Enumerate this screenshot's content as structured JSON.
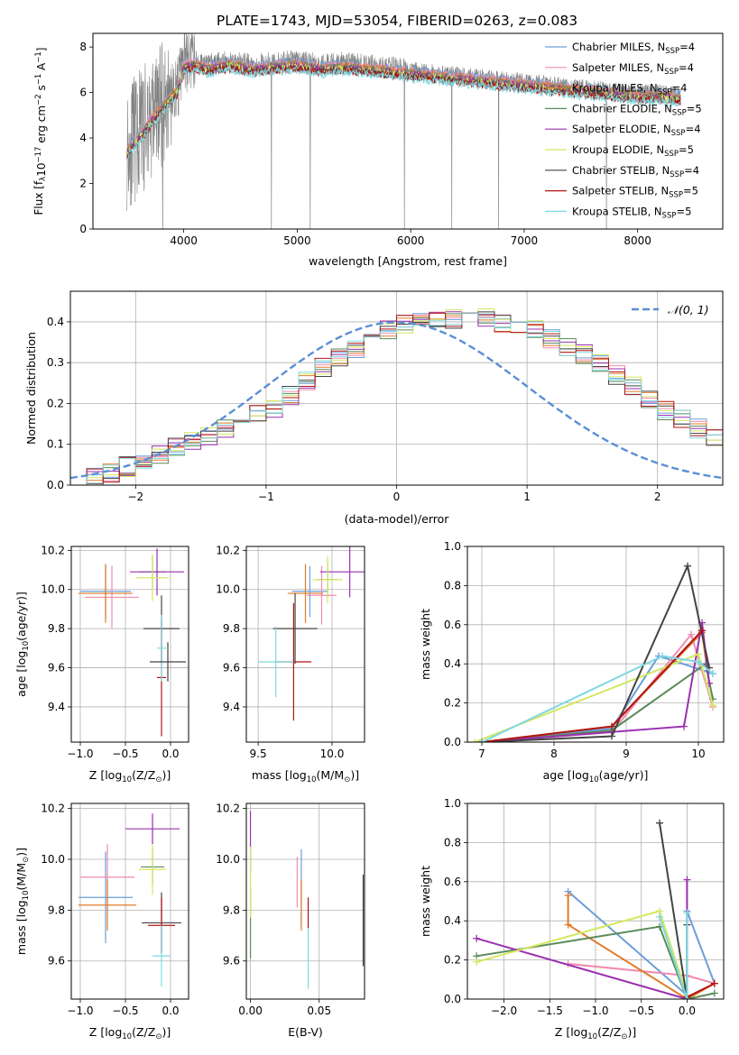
{
  "figure": {
    "title": "PLATE=1743, MJD=53054, FIBERID=0263, z=0.083",
    "model_colors": {
      "Chabrier MILES": "#6a9fd8",
      "Salpeter MILES": "#f08cb0",
      "Kroupa MILES": "#e07b2a",
      "Chabrier ELODIE": "#5a8a5a",
      "Salpeter ELODIE": "#9b30b0",
      "Kroupa ELODIE": "#d4e860",
      "Chabrier STELIB": "#444444",
      "Salpeter STELIB": "#b01515",
      "Kroupa STELIB": "#7fd8e0"
    }
  },
  "chart_data": [
    {
      "id": "spectrum",
      "type": "line",
      "title": "PLATE=1743, MJD=53054, FIBERID=0263, z=0.083",
      "xlabel": "wavelength [Angstrom, rest frame]",
      "ylabel_parts": [
        "Flux [f",
        "λ",
        "10",
        "−17",
        " erg cm",
        "−2",
        " s",
        "−1",
        " A",
        "−1",
        "]"
      ],
      "xlim": [
        3200,
        8750
      ],
      "ylim": [
        0,
        8.6
      ],
      "xticks": [
        4000,
        5000,
        6000,
        7000,
        8000
      ],
      "yticks": [
        0,
        2,
        4,
        6,
        8
      ],
      "data_series": {
        "name": "data",
        "color": "#808080",
        "wave_range": [
          3500,
          8380
        ]
      },
      "continuum": {
        "x": [
          3500,
          3560,
          3640,
          3720,
          3800,
          3880,
          3950,
          4000,
          4100,
          4200,
          4300,
          4400,
          4500,
          4600,
          4800,
          5000,
          5200,
          5400,
          5600,
          5800,
          6000,
          6200,
          6400,
          6600,
          6800,
          7000,
          7200,
          7400,
          7600,
          7800,
          8000,
          8200,
          8380
        ],
        "y": [
          3.6,
          3.9,
          4.4,
          5.0,
          5.4,
          5.9,
          6.3,
          7.3,
          7.4,
          7.2,
          7.3,
          7.4,
          7.3,
          7.2,
          7.3,
          7.4,
          7.2,
          7.3,
          7.2,
          7.1,
          7.0,
          6.9,
          6.8,
          6.7,
          6.6,
          6.5,
          6.4,
          6.3,
          6.2,
          6.1,
          6.0,
          6.0,
          5.9
        ]
      },
      "legend": [
        {
          "label": "Chabrier MILES, N",
          "sub": "SSP",
          "tail": "=4",
          "color": "#6a9fd8"
        },
        {
          "label": "Salpeter MILES, N",
          "sub": "SSP",
          "tail": "=4",
          "color": "#f08cb0"
        },
        {
          "label": "Kroupa MILES, N",
          "sub": "SSP",
          "tail": "=4",
          "color": "#e07b2a"
        },
        {
          "label": "Chabrier ELODIE, N",
          "sub": "SSP",
          "tail": "=5",
          "color": "#5a8a5a"
        },
        {
          "label": "Salpeter ELODIE, N",
          "sub": "SSP",
          "tail": "=4",
          "color": "#9b30b0"
        },
        {
          "label": "Kroupa ELODIE, N",
          "sub": "SSP",
          "tail": "=5",
          "color": "#d4e860"
        },
        {
          "label": "Chabrier STELIB, N",
          "sub": "SSP",
          "tail": "=4",
          "color": "#444444"
        },
        {
          "label": "Salpeter STELIB, N",
          "sub": "SSP",
          "tail": "=5",
          "color": "#b01515"
        },
        {
          "label": "Kroupa STELIB, N",
          "sub": "SSP",
          "tail": "=5",
          "color": "#7fd8e0"
        }
      ],
      "legend_position": "top-right"
    },
    {
      "id": "residuals",
      "type": "histogram",
      "xlabel": "(data-model)/error",
      "ylabel": "Normed distribution",
      "xlim": [
        -2.5,
        2.5
      ],
      "ylim": [
        0,
        0.475
      ],
      "xticks": [
        -2,
        -1,
        0,
        1,
        2
      ],
      "xtick_labels": [
        "−2",
        "−1",
        "0",
        "1",
        "2"
      ],
      "yticks": [
        0.0,
        0.1,
        0.2,
        0.3,
        0.4
      ],
      "ytick_labels": [
        "0.0",
        "0.1",
        "0.2",
        "0.3",
        "0.4"
      ],
      "grid": true,
      "bin_width": 0.125,
      "bin_start": -2.5,
      "base_heights": [
        0.015,
        0.02,
        0.03,
        0.045,
        0.06,
        0.075,
        0.09,
        0.11,
        0.12,
        0.135,
        0.15,
        0.175,
        0.19,
        0.22,
        0.255,
        0.29,
        0.315,
        0.335,
        0.36,
        0.38,
        0.395,
        0.405,
        0.41,
        0.405,
        0.4,
        0.41,
        0.4,
        0.395,
        0.38,
        0.36,
        0.34,
        0.32,
        0.3,
        0.27,
        0.24,
        0.21,
        0.18,
        0.16,
        0.14,
        0.12,
        0.1,
        0.085,
        0.07,
        0.055,
        0.04,
        0.03,
        0.02,
        0.02
      ],
      "gaussian": {
        "label": "𝒩(0, 1)",
        "color": "#5b8fd6",
        "mean": 0,
        "sigma": 1
      },
      "legend_position": "top-right"
    },
    {
      "id": "age_vs_Z",
      "type": "errorbar",
      "xlabel_parts": [
        "Z [log",
        "10",
        "(Z/Z",
        "⊙",
        ")]"
      ],
      "ylabel_parts": [
        "age  [log",
        "10",
        "(age/yr)]"
      ],
      "xlim": [
        -1.1,
        0.2
      ],
      "ylim": [
        9.22,
        10.22
      ],
      "xticks": [
        -1.0,
        -0.5,
        0.0
      ],
      "xtick_labels": [
        "−1.0",
        "−0.5",
        "0.0"
      ],
      "yticks": [
        9.4,
        9.6,
        9.8,
        10.0,
        10.2
      ],
      "ytick_labels": [
        "9.4",
        "9.6",
        "9.8",
        "10.0",
        "10.2"
      ],
      "grid": true,
      "points": [
        {
          "model": "Chabrier MILES",
          "x": -0.72,
          "xerr": 0.28,
          "y": 9.99,
          "yerr": 0.14
        },
        {
          "model": "Salpeter MILES",
          "x": -0.65,
          "xerr": 0.3,
          "y": 9.96,
          "yerr": 0.16
        },
        {
          "model": "Kroupa MILES",
          "x": -0.72,
          "xerr": 0.3,
          "y": 9.98,
          "yerr": 0.15
        },
        {
          "model": "Chabrier ELODIE",
          "x": -0.2,
          "xerr": 0.15,
          "y": 10.09,
          "yerr": 0.08
        },
        {
          "model": "Salpeter ELODIE",
          "x": -0.15,
          "xerr": 0.3,
          "y": 10.09,
          "yerr": 0.12
        },
        {
          "model": "Kroupa ELODIE",
          "x": -0.2,
          "xerr": 0.18,
          "y": 10.06,
          "yerr": 0.12
        },
        {
          "model": "Chabrier STELIB",
          "x": -0.1,
          "xerr": 0.2,
          "y": 9.8,
          "yerr": 0.17
        },
        {
          "model": "Salpeter STELIB",
          "x": -0.1,
          "xerr": 0.05,
          "y": 9.55,
          "yerr": 0.3
        },
        {
          "model": "Kroupa STELIB",
          "x": -0.1,
          "xerr": 0.05,
          "y": 9.7,
          "yerr": 0.17
        },
        {
          "model": "Chabrier STELIB",
          "x": -0.03,
          "xerr": 0.2,
          "y": 9.63,
          "yerr": 0.1
        }
      ]
    },
    {
      "id": "age_vs_mass",
      "type": "errorbar",
      "xlabel_parts": [
        "mass [log",
        "10",
        "(M/M",
        "⊙",
        ")]"
      ],
      "xlim": [
        9.42,
        10.22
      ],
      "ylim": [
        9.22,
        10.22
      ],
      "xticks": [
        9.5,
        10.0
      ],
      "xtick_labels": [
        "9.5",
        "10.0"
      ],
      "yticks": [
        9.4,
        9.6,
        9.8,
        10.0,
        10.2
      ],
      "ytick_labels": [
        "9.4",
        "9.6",
        "9.8",
        "10.0",
        "10.2"
      ],
      "grid": true,
      "points": [
        {
          "model": "Chabrier MILES",
          "x": 9.85,
          "xerr": 0.12,
          "y": 9.99,
          "yerr": 0.13
        },
        {
          "model": "Salpeter MILES",
          "x": 9.93,
          "xerr": 0.1,
          "y": 9.97,
          "yerr": 0.15
        },
        {
          "model": "Kroupa MILES",
          "x": 9.82,
          "xerr": 0.12,
          "y": 9.98,
          "yerr": 0.15
        },
        {
          "model": "Chabrier ELODIE",
          "x": 9.97,
          "xerr": 0.07,
          "y": 10.05,
          "yerr": 0.09
        },
        {
          "model": "Salpeter ELODIE",
          "x": 10.12,
          "xerr": 0.2,
          "y": 10.09,
          "yerr": 0.13
        },
        {
          "model": "Kroupa ELODIE",
          "x": 9.97,
          "xerr": 0.1,
          "y": 10.05,
          "yerr": 0.12
        },
        {
          "model": "Chabrier STELIB",
          "x": 9.75,
          "xerr": 0.15,
          "y": 9.8,
          "yerr": 0.18
        },
        {
          "model": "Salpeter STELIB",
          "x": 9.74,
          "xerr": 0.12,
          "y": 9.63,
          "yerr": 0.3
        },
        {
          "model": "Kroupa STELIB",
          "x": 9.62,
          "xerr": 0.12,
          "y": 9.63,
          "yerr": 0.18
        }
      ]
    },
    {
      "id": "weight_vs_age",
      "type": "line",
      "xlabel_parts": [
        "age  [log",
        "10",
        "(age/yr)]"
      ],
      "ylabel": "mass weight",
      "xlim": [
        6.8,
        10.35
      ],
      "ylim": [
        0,
        1.0
      ],
      "xticks": [
        7,
        8,
        9,
        10
      ],
      "xtick_labels": [
        "7",
        "8",
        "9",
        "10"
      ],
      "yticks": [
        0.0,
        0.2,
        0.4,
        0.6,
        0.8,
        1.0
      ],
      "ytick_labels": [
        "0.0",
        "0.2",
        "0.4",
        "0.6",
        "0.8",
        "1.0"
      ],
      "grid": true,
      "series": [
        {
          "model": "Chabrier MILES",
          "x": [
            7.0,
            8.8,
            9.45,
            10.2
          ],
          "y": [
            0.0,
            0.07,
            0.44,
            0.35
          ]
        },
        {
          "model": "Salpeter MILES",
          "x": [
            7.0,
            8.8,
            9.9,
            10.2
          ],
          "y": [
            0.0,
            0.05,
            0.55,
            0.18
          ]
        },
        {
          "model": "Kroupa MILES",
          "x": [
            7.0,
            8.8,
            10.05,
            10.15
          ],
          "y": [
            0.0,
            0.08,
            0.56,
            0.3
          ]
        },
        {
          "model": "Chabrier ELODIE",
          "x": [
            7.0,
            8.8,
            10.1,
            10.2
          ],
          "y": [
            0.0,
            0.06,
            0.4,
            0.22
          ]
        },
        {
          "model": "Salpeter ELODIE",
          "x": [
            7.0,
            9.8,
            10.05,
            10.15
          ],
          "y": [
            0.0,
            0.08,
            0.61,
            0.3
          ]
        },
        {
          "model": "Kroupa ELODIE",
          "x": [
            6.9,
            10.0,
            10.2
          ],
          "y": [
            0.0,
            0.45,
            0.19
          ]
        },
        {
          "model": "Chabrier STELIB",
          "x": [
            7.0,
            8.8,
            9.85,
            10.15
          ],
          "y": [
            0.0,
            0.03,
            0.9,
            0.38
          ]
        },
        {
          "model": "Salpeter STELIB",
          "x": [
            7.0,
            8.8,
            10.05
          ],
          "y": [
            0.0,
            0.08,
            0.57
          ]
        },
        {
          "model": "Kroupa STELIB",
          "x": [
            7.0,
            9.5,
            10.0,
            10.2
          ],
          "y": [
            0.0,
            0.44,
            0.41,
            0.35
          ]
        }
      ]
    },
    {
      "id": "mass_vs_Z",
      "type": "errorbar",
      "xlabel_parts": [
        "Z [log",
        "10",
        "(Z/Z",
        "⊙",
        ")]"
      ],
      "ylabel_parts": [
        "mass [log",
        "10",
        "(M/M",
        "⊙",
        ")]"
      ],
      "xlim": [
        -1.1,
        0.2
      ],
      "ylim": [
        9.45,
        10.22
      ],
      "xticks": [
        -1.0,
        -0.5,
        0.0
      ],
      "xtick_labels": [
        "−1.0",
        "−0.5",
        "0.0"
      ],
      "yticks": [
        9.6,
        9.8,
        10.0,
        10.2
      ],
      "ytick_labels": [
        "9.6",
        "9.8",
        "10.0",
        "10.2"
      ],
      "grid": true,
      "points": [
        {
          "model": "Chabrier MILES",
          "x": -0.72,
          "xerr": 0.3,
          "y": 9.85,
          "yerr": 0.18
        },
        {
          "model": "Salpeter MILES",
          "x": -0.7,
          "xerr": 0.3,
          "y": 9.93,
          "yerr": 0.13
        },
        {
          "model": "Kroupa MILES",
          "x": -0.7,
          "xerr": 0.32,
          "y": 9.82,
          "yerr": 0.1
        },
        {
          "model": "Chabrier ELODIE",
          "x": -0.2,
          "xerr": 0.13,
          "y": 9.97,
          "yerr": 0.07
        },
        {
          "model": "Salpeter ELODIE",
          "x": -0.2,
          "xerr": 0.3,
          "y": 10.12,
          "yerr": 0.06
        },
        {
          "model": "Kroupa ELODIE",
          "x": -0.2,
          "xerr": 0.15,
          "y": 9.96,
          "yerr": 0.1
        },
        {
          "model": "Chabrier STELIB",
          "x": -0.1,
          "xerr": 0.22,
          "y": 9.75,
          "yerr": 0.12
        },
        {
          "model": "Salpeter STELIB",
          "x": -0.1,
          "xerr": 0.15,
          "y": 9.74,
          "yerr": 0.11
        },
        {
          "model": "Kroupa STELIB",
          "x": -0.1,
          "xerr": 0.1,
          "y": 9.62,
          "yerr": 0.12
        }
      ]
    },
    {
      "id": "mass_vs_ebv",
      "type": "errorbar",
      "xlabel": "E(B-V)",
      "xlim": [
        -0.003,
        0.083
      ],
      "ylim": [
        9.45,
        10.22
      ],
      "xticks": [
        0.0,
        0.05
      ],
      "xtick_labels": [
        "0.00",
        "0.05"
      ],
      "yticks": [
        9.6,
        9.8,
        10.0,
        10.2
      ],
      "ytick_labels": [
        "9.6",
        "9.8",
        "10.0",
        "10.2"
      ],
      "grid": true,
      "points": [
        {
          "model": "Chabrier MILES",
          "x": 0.037,
          "y": 9.89,
          "yerr": 0.15
        },
        {
          "model": "Salpeter MILES",
          "x": 0.034,
          "y": 9.91,
          "yerr": 0.1
        },
        {
          "model": "Kroupa MILES",
          "x": 0.037,
          "y": 9.82,
          "yerr": 0.1
        },
        {
          "model": "Chabrier ELODIE",
          "x": 0.0,
          "y": 9.75,
          "yerr": 0.14
        },
        {
          "model": "Salpeter ELODIE",
          "x": 0.0,
          "y": 10.07,
          "yerr": 0.12
        },
        {
          "model": "Kroupa ELODIE",
          "x": 0.0,
          "y": 9.91,
          "yerr": 0.14
        },
        {
          "model": "Chabrier STELIB",
          "x": 0.082,
          "y": 9.76,
          "yerr": 0.18
        },
        {
          "model": "Salpeter STELIB",
          "x": 0.042,
          "y": 9.79,
          "yerr": 0.06
        },
        {
          "model": "Kroupa STELIB",
          "x": 0.042,
          "y": 9.61,
          "yerr": 0.12
        }
      ]
    },
    {
      "id": "weight_vs_Z",
      "type": "line",
      "xlabel_parts": [
        "Z [log",
        "10",
        "(Z/Z",
        "⊙",
        ")]"
      ],
      "ylabel": "mass weight",
      "xlim": [
        -2.4,
        0.4
      ],
      "ylim": [
        0,
        1.0
      ],
      "xticks": [
        -2.0,
        -1.5,
        -1.0,
        -0.5,
        0.0
      ],
      "xtick_labels": [
        "−2.0",
        "−1.5",
        "−1.0",
        "−0.5",
        "0.0"
      ],
      "yticks": [
        0.0,
        0.2,
        0.4,
        0.6,
        0.8,
        1.0
      ],
      "ytick_labels": [
        "0.0",
        "0.2",
        "0.4",
        "0.6",
        "0.8",
        "1.0"
      ],
      "grid": true,
      "series": [
        {
          "model": "Chabrier MILES",
          "x": [
            -1.3,
            0.0,
            0.0,
            0.3
          ],
          "y": [
            0.55,
            0.02,
            0.45,
            0.08
          ]
        },
        {
          "model": "Salpeter MILES",
          "x": [
            -1.3,
            0.0,
            0.3
          ],
          "y": [
            0.18,
            0.12,
            0.08
          ]
        },
        {
          "model": "Kroupa MILES",
          "x": [
            -1.3,
            -1.3,
            0.0,
            0.3
          ],
          "y": [
            0.53,
            0.38,
            0.0,
            0.08
          ]
        },
        {
          "model": "Chabrier ELODIE",
          "x": [
            -2.3,
            -0.3,
            0.0,
            0.3
          ],
          "y": [
            0.22,
            0.37,
            0.0,
            0.03
          ]
        },
        {
          "model": "Salpeter ELODIE",
          "x": [
            -2.3,
            0.0,
            0.0,
            0.0
          ],
          "y": [
            0.31,
            0.0,
            0.61,
            0.02
          ]
        },
        {
          "model": "Kroupa ELODIE",
          "x": [
            -2.3,
            -0.3,
            0.0
          ],
          "y": [
            0.19,
            0.45,
            0.02
          ]
        },
        {
          "model": "Chabrier STELIB",
          "x": [
            -0.3,
            0.0,
            0.0
          ],
          "y": [
            0.9,
            0.0,
            0.38
          ]
        },
        {
          "model": "Salpeter STELIB",
          "x": [
            0.0,
            0.3
          ],
          "y": [
            0.01,
            0.08
          ]
        },
        {
          "model": "Kroupa STELIB",
          "x": [
            -0.3,
            0.0,
            0.0
          ],
          "y": [
            0.42,
            0.0,
            0.44
          ]
        }
      ]
    }
  ]
}
